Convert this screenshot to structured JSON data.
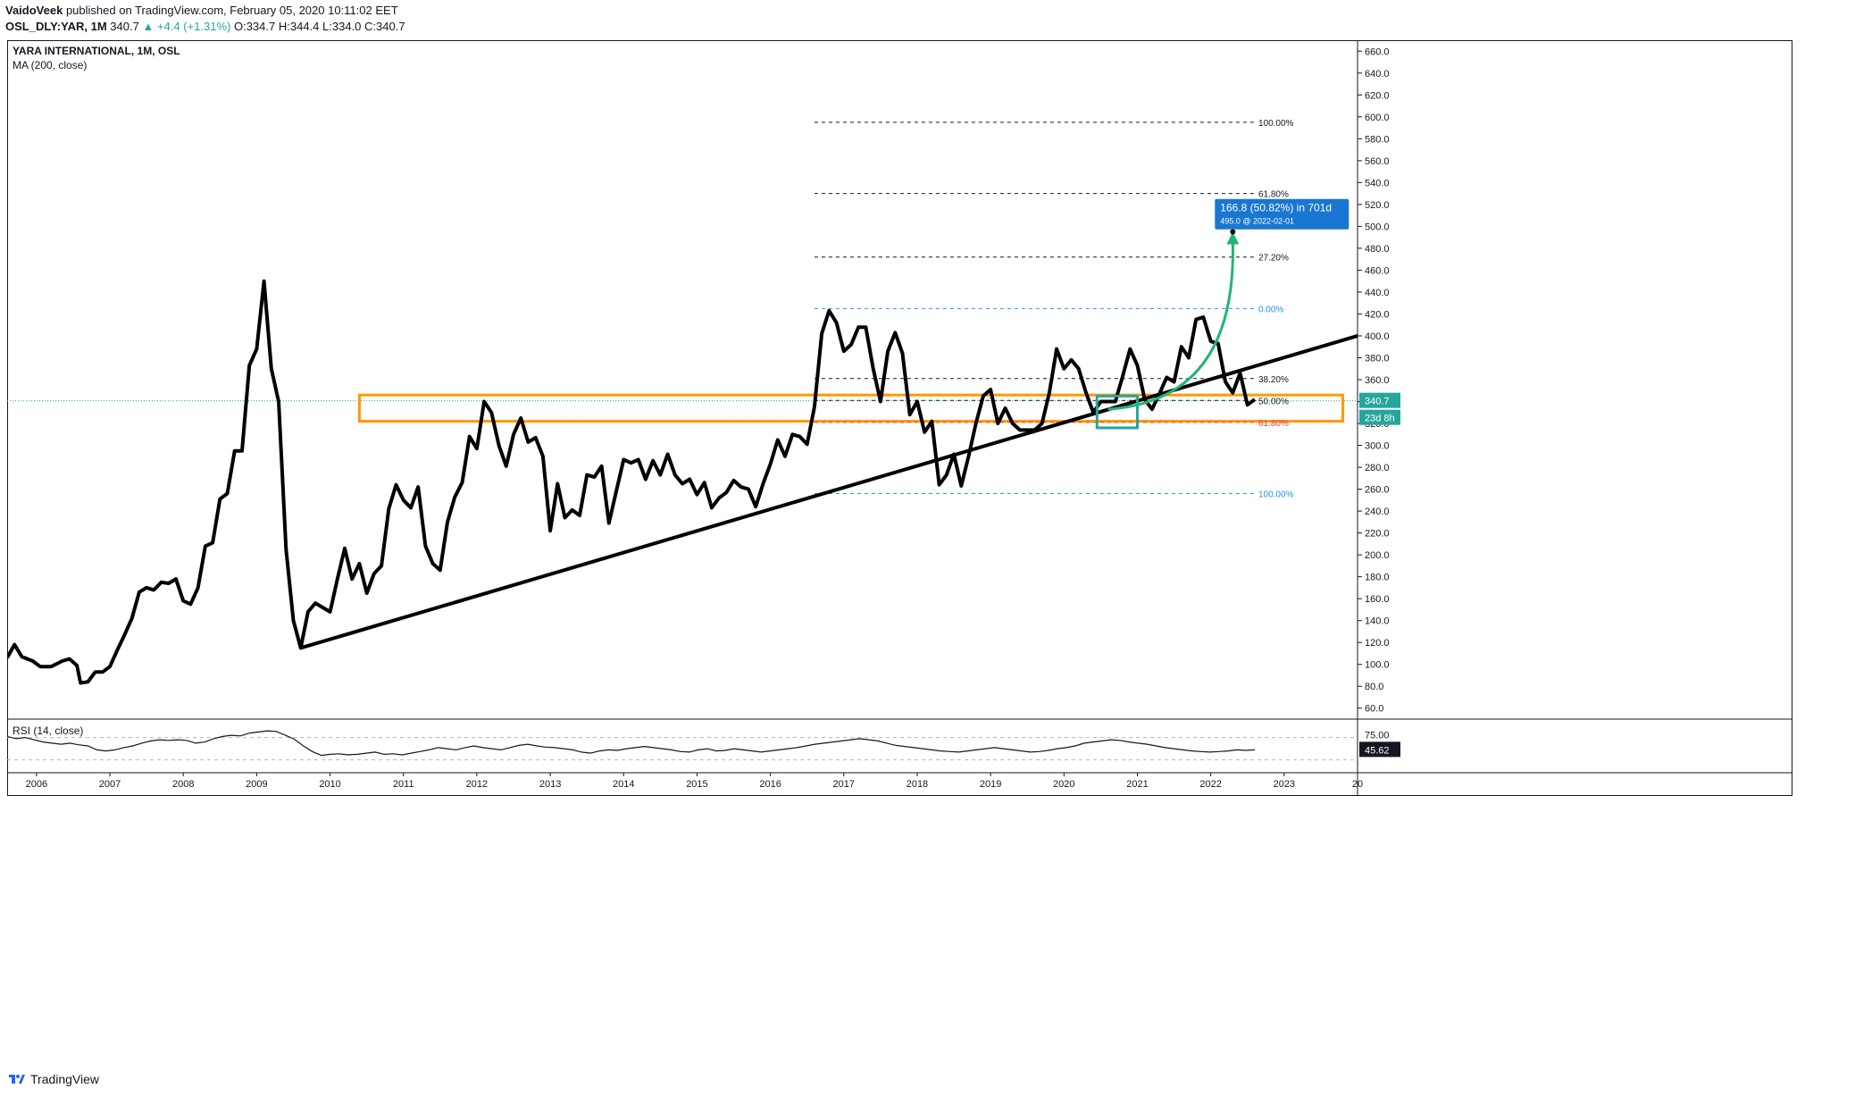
{
  "header": {
    "author": "VaidoVeek",
    "published": " published on TradingView.com, February 05, 2020 10:11:02 EET"
  },
  "ohlc": {
    "symbol": "OSL_DLY:YAR, 1M",
    "last": "340.7",
    "change": "▲ +4.4 (+1.31%)",
    "open": "O:334.7",
    "high": "H:344.4",
    "low": "L:334.0",
    "close": "C:340.7"
  },
  "chart_data": [
    {
      "type": "line",
      "title": "YARA INTERNATIONAL, 1M, OSL",
      "subtitle": "MA (200, close)",
      "x_ticks": [
        "2006",
        "2007",
        "2008",
        "2009",
        "2010",
        "2011",
        "2012",
        "2013",
        "2014",
        "2015",
        "2016",
        "2017",
        "2018",
        "2019",
        "2020",
        "2021",
        "2022",
        "2023",
        "20"
      ],
      "y_ticks": [
        "660.0",
        "640.0",
        "620.0",
        "600.0",
        "580.0",
        "560.0",
        "540.0",
        "520.0",
        "500.0",
        "480.0",
        "460.0",
        "440.0",
        "420.0",
        "400.0",
        "380.0",
        "360.0",
        "340.0",
        "320.0",
        "300.0",
        "280.0",
        "260.0",
        "240.0",
        "220.0",
        "200.0",
        "180.0",
        "160.0",
        "140.0",
        "120.0",
        "100.0",
        "80.0",
        "60.0"
      ],
      "ylim": [
        50,
        670
      ],
      "xlim": [
        2005.6,
        2024.0
      ],
      "series": [
        {
          "values": [
            [
              2005.6,
              106
            ],
            [
              2005.7,
              118
            ],
            [
              2005.8,
              107
            ],
            [
              2005.95,
              103
            ],
            [
              2006.05,
              98
            ],
            [
              2006.2,
              98
            ],
            [
              2006.35,
              103
            ],
            [
              2006.45,
              105
            ],
            [
              2006.55,
              99
            ],
            [
              2006.6,
              83
            ],
            [
              2006.7,
              84
            ],
            [
              2006.8,
              93
            ],
            [
              2006.9,
              93
            ],
            [
              2007.0,
              98
            ],
            [
              2007.1,
              113
            ],
            [
              2007.2,
              127
            ],
            [
              2007.3,
              142
            ],
            [
              2007.4,
              166
            ],
            [
              2007.5,
              170
            ],
            [
              2007.6,
              168
            ],
            [
              2007.7,
              175
            ],
            [
              2007.8,
              174
            ],
            [
              2007.9,
              178
            ],
            [
              2008.0,
              158
            ],
            [
              2008.1,
              155
            ],
            [
              2008.2,
              170
            ],
            [
              2008.3,
              208
            ],
            [
              2008.4,
              211
            ],
            [
              2008.5,
              251
            ],
            [
              2008.6,
              256
            ],
            [
              2008.7,
              295
            ],
            [
              2008.8,
              295
            ],
            [
              2008.9,
              373
            ],
            [
              2009.0,
              388
            ],
            [
              2009.1,
              450
            ],
            [
              2009.2,
              370
            ],
            [
              2009.3,
              340
            ],
            [
              2009.4,
              205
            ],
            [
              2009.5,
              140
            ],
            [
              2009.6,
              115
            ],
            [
              2009.7,
              148
            ],
            [
              2009.8,
              156
            ],
            [
              2009.9,
              152
            ],
            [
              2010.0,
              148
            ],
            [
              2010.1,
              178
            ],
            [
              2010.2,
              206
            ],
            [
              2010.3,
              178
            ],
            [
              2010.4,
              192
            ],
            [
              2010.5,
              165
            ],
            [
              2010.6,
              183
            ],
            [
              2010.7,
              190
            ],
            [
              2010.8,
              242
            ],
            [
              2010.9,
              264
            ],
            [
              2011.0,
              250
            ],
            [
              2011.1,
              243
            ],
            [
              2011.2,
              262
            ],
            [
              2011.3,
              208
            ],
            [
              2011.4,
              192
            ],
            [
              2011.5,
              186
            ],
            [
              2011.6,
              230
            ],
            [
              2011.7,
              253
            ],
            [
              2011.8,
              266
            ],
            [
              2011.9,
              308
            ],
            [
              2012.0,
              297
            ],
            [
              2012.1,
              340
            ],
            [
              2012.2,
              330
            ],
            [
              2012.3,
              300
            ],
            [
              2012.4,
              281
            ],
            [
              2012.5,
              310
            ],
            [
              2012.6,
              325
            ],
            [
              2012.7,
              303
            ],
            [
              2012.8,
              307
            ],
            [
              2012.9,
              290
            ],
            [
              2013.0,
              222
            ],
            [
              2013.1,
              265
            ],
            [
              2013.2,
              234
            ],
            [
              2013.3,
              241
            ],
            [
              2013.4,
              236
            ],
            [
              2013.5,
              273
            ],
            [
              2013.6,
              271
            ],
            [
              2013.7,
              281
            ],
            [
              2013.8,
              229
            ],
            [
              2013.9,
              258
            ],
            [
              2014.0,
              287
            ],
            [
              2014.1,
              284
            ],
            [
              2014.2,
              287
            ],
            [
              2014.3,
              269
            ],
            [
              2014.4,
              286
            ],
            [
              2014.5,
              273
            ],
            [
              2014.6,
              292
            ],
            [
              2014.7,
              273
            ],
            [
              2014.8,
              265
            ],
            [
              2014.9,
              269
            ],
            [
              2015.0,
              255
            ],
            [
              2015.1,
              266
            ],
            [
              2015.2,
              243
            ],
            [
              2015.3,
              252
            ],
            [
              2015.4,
              257
            ],
            [
              2015.5,
              268
            ],
            [
              2015.6,
              262
            ],
            [
              2015.7,
              260
            ],
            [
              2015.8,
              244
            ],
            [
              2015.9,
              265
            ],
            [
              2016.0,
              283
            ],
            [
              2016.1,
              305
            ],
            [
              2016.2,
              290
            ],
            [
              2016.3,
              310
            ],
            [
              2016.4,
              308
            ],
            [
              2016.5,
              301
            ],
            [
              2016.6,
              335
            ],
            [
              2016.7,
              402
            ],
            [
              2016.8,
              423
            ],
            [
              2016.9,
              412
            ],
            [
              2017.0,
              386
            ],
            [
              2017.1,
              392
            ],
            [
              2017.2,
              408
            ],
            [
              2017.3,
              408
            ],
            [
              2017.4,
              370
            ],
            [
              2017.5,
              340
            ],
            [
              2017.6,
              386
            ],
            [
              2017.7,
              403
            ],
            [
              2017.8,
              384
            ],
            [
              2017.9,
              328
            ],
            [
              2018.0,
              340
            ],
            [
              2018.1,
              312
            ],
            [
              2018.2,
              322
            ],
            [
              2018.3,
              264
            ],
            [
              2018.4,
              273
            ],
            [
              2018.5,
              292
            ],
            [
              2018.6,
              263
            ],
            [
              2018.7,
              290
            ],
            [
              2018.8,
              320
            ],
            [
              2018.9,
              345
            ],
            [
              2019.0,
              351
            ],
            [
              2019.1,
              320
            ],
            [
              2019.2,
              334
            ],
            [
              2019.3,
              320
            ],
            [
              2019.4,
              314
            ],
            [
              2019.5,
              314
            ],
            [
              2019.6,
              314
            ],
            [
              2019.7,
              320
            ],
            [
              2019.8,
              348
            ],
            [
              2019.9,
              388
            ],
            [
              2020.0,
              370
            ],
            [
              2020.1,
              378
            ],
            [
              2020.2,
              370
            ],
            [
              2020.3,
              348
            ],
            [
              2020.4,
              330
            ],
            [
              2020.5,
              340
            ],
            [
              2020.6,
              340
            ],
            [
              2020.7,
              340
            ],
            [
              2020.8,
              363
            ],
            [
              2020.9,
              388
            ],
            [
              2021.0,
              373
            ],
            [
              2021.1,
              342
            ],
            [
              2021.2,
              333
            ],
            [
              2021.3,
              347
            ],
            [
              2021.4,
              362
            ],
            [
              2021.5,
              358
            ],
            [
              2021.6,
              390
            ],
            [
              2021.7,
              380
            ],
            [
              2021.8,
              415
            ],
            [
              2021.9,
              417
            ],
            [
              2022.0,
              395
            ],
            [
              2022.1,
              393
            ],
            [
              2022.2,
              358
            ],
            [
              2022.3,
              348
            ],
            [
              2022.4,
              366
            ],
            [
              2022.5,
              337
            ],
            [
              2022.6,
              342
            ]
          ]
        }
      ],
      "fib_levels": [
        {
          "label": "100.00%",
          "value": 595,
          "color": "#131722"
        },
        {
          "label": "61.80%",
          "value": 530,
          "color": "#131722"
        },
        {
          "label": "27.20%",
          "value": 472,
          "color": "#131722"
        },
        {
          "label": "0.00%",
          "value": 425,
          "color": "#2196f3"
        },
        {
          "label": "38.20%",
          "value": 361,
          "color": "#131722"
        },
        {
          "label": "50.00%",
          "value": 341,
          "color": "#131722"
        },
        {
          "label": "61.80%",
          "value": 321,
          "color": "#f23645"
        },
        {
          "label": "100.00%",
          "value": 256,
          "color": "#2196f3"
        }
      ],
      "trendline": [
        [
          2009.6,
          115
        ],
        [
          2024.0,
          400
        ]
      ],
      "support_zone": [
        2010.4,
        2023.8,
        322,
        346
      ],
      "target_box": [
        2020.45,
        2021.0,
        316,
        345
      ],
      "projection": {
        "label": "166.8 (50.82%) in 701d",
        "sublabel": "495.0 @ 2022-02-01",
        "value": 495
      },
      "price_tag": {
        "value": 340.7,
        "label": "340.7",
        "countdown": "23d 8h",
        "color": "#26a69a"
      }
    },
    {
      "type": "line",
      "title": "RSI (14, close)",
      "y_ticks": [
        "75.00"
      ],
      "ylim": [
        15,
        95
      ],
      "levels": [
        70,
        30
      ],
      "series": [
        {
          "values": [
            72,
            68,
            70,
            66,
            62,
            60,
            58,
            60,
            57,
            55,
            48,
            46,
            48,
            52,
            55,
            60,
            64,
            66,
            65,
            66,
            65,
            60,
            62,
            68,
            72,
            74,
            73,
            78,
            80,
            82,
            81,
            74,
            67,
            55,
            45,
            38,
            40,
            41,
            39,
            40,
            42,
            44,
            40,
            41,
            39,
            42,
            45,
            48,
            52,
            50,
            48,
            52,
            55,
            52,
            50,
            48,
            52,
            56,
            58,
            55,
            53,
            52,
            50,
            48,
            44,
            42,
            46,
            48,
            47,
            50,
            52,
            54,
            52,
            50,
            48,
            45,
            44,
            48,
            50,
            46,
            47,
            50,
            48,
            46,
            44,
            46,
            48,
            50,
            52,
            55,
            58,
            60,
            62,
            64,
            66,
            68,
            66,
            64,
            60,
            56,
            54,
            52,
            50,
            48,
            46,
            45,
            44,
            46,
            48,
            50,
            52,
            50,
            48,
            46,
            44,
            45,
            47,
            50,
            52,
            55,
            60,
            62,
            64,
            66,
            65,
            62,
            60,
            58,
            55,
            52,
            50,
            48,
            46,
            45,
            44,
            45,
            46,
            48,
            47,
            48
          ]
        }
      ],
      "price_tag": {
        "label": "45.62"
      }
    }
  ],
  "footer": {
    "brand": "TradingView"
  }
}
